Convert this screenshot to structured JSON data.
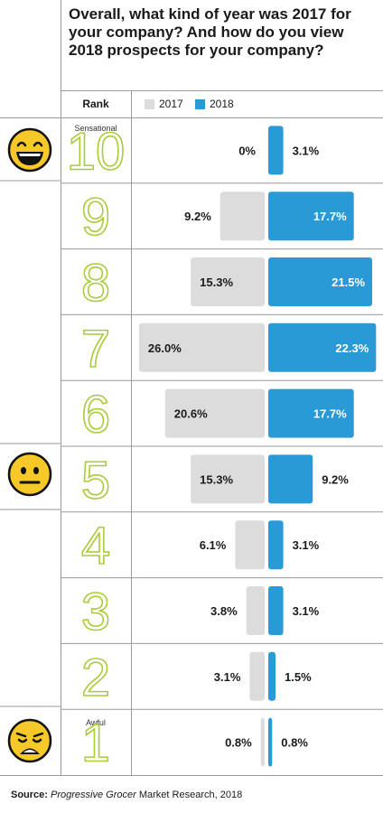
{
  "title": "Overall, what kind of year was 2017 for your company? And how do you view 2018 prospects for your company?",
  "rank_header": "Rank",
  "legend": [
    {
      "label": "2017",
      "color": "#dcdcdc"
    },
    {
      "label": "2018",
      "color": "#2a9ad6"
    }
  ],
  "rank_labels": {
    "sensational": "Sensational",
    "awful": "Awful"
  },
  "source": {
    "prefix": "Source:",
    "italic": "Progressive Grocer",
    "rest": " Market Research, 2018"
  },
  "colors": {
    "y2017": "#dcdcdc",
    "y2018": "#2a9ad6",
    "rank_number": "#a8cc3a",
    "grid": "#9a9a9a"
  },
  "icons": [
    "grinning-face-icon",
    "neutral-face-icon",
    "weary-face-icon"
  ],
  "chart_data": {
    "type": "bar",
    "orientation": "horizontal-diverging",
    "categories": [
      "10",
      "9",
      "8",
      "7",
      "6",
      "5",
      "4",
      "3",
      "2",
      "1"
    ],
    "series": [
      {
        "name": "2017",
        "values": [
          0.0,
          9.2,
          15.3,
          26.0,
          20.6,
          15.3,
          6.1,
          3.8,
          3.1,
          0.8
        ],
        "labels": [
          "0%",
          "9.2%",
          "15.3%",
          "26.0%",
          "20.6%",
          "15.3%",
          "6.1%",
          "3.8%",
          "3.1%",
          "0.8%"
        ]
      },
      {
        "name": "2018",
        "values": [
          3.1,
          17.7,
          21.5,
          22.3,
          17.7,
          9.2,
          3.1,
          3.1,
          1.5,
          0.8
        ],
        "labels": [
          "3.1%",
          "17.7%",
          "21.5%",
          "22.3%",
          "17.7%",
          "9.2%",
          "3.1%",
          "3.1%",
          "1.5%",
          "0.8%"
        ]
      }
    ]
  }
}
